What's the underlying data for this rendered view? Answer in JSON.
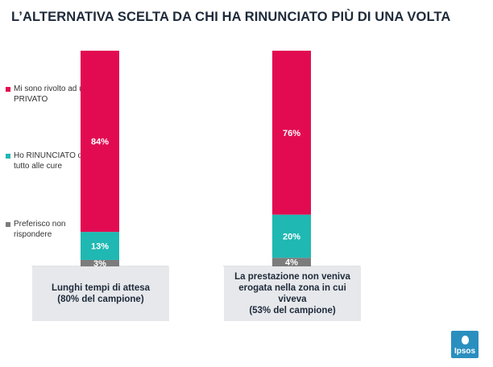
{
  "title": "L’ALTERNATIVA SCELTA DA CHI HA RINUNCIATO PIÙ DI UNA VOLTA",
  "brand": "Ipsos",
  "colors": {
    "privato": "#e20b52",
    "rinunciato": "#1fb8b2",
    "non_risponde": "#7c7c7c",
    "label_box": "#e6e8eb"
  },
  "chart_data": {
    "type": "bar",
    "stacked": true,
    "categories": [
      {
        "name": "Lunghi tempi di attesa",
        "sample": "(80% del campione)"
      },
      {
        "name": "La prestazione non veniva erogata nella zona in cui viveva",
        "sample": "(53% del campione)"
      }
    ],
    "series": [
      {
        "name": "Preferisco non rispondere",
        "values": [
          3,
          4
        ],
        "labels": [
          "3%",
          "4%"
        ]
      },
      {
        "name": "Ho RINUNCIATO del tutto alle cure",
        "values": [
          13,
          20
        ],
        "labels": [
          "13%",
          "20%"
        ]
      },
      {
        "name": "Mi sono rivolto ad un PRIVATO",
        "values": [
          84,
          76
        ],
        "labels": [
          "84%",
          "76%"
        ]
      }
    ],
    "ylim": [
      0,
      100
    ],
    "grid": false,
    "legend_position": "left"
  }
}
